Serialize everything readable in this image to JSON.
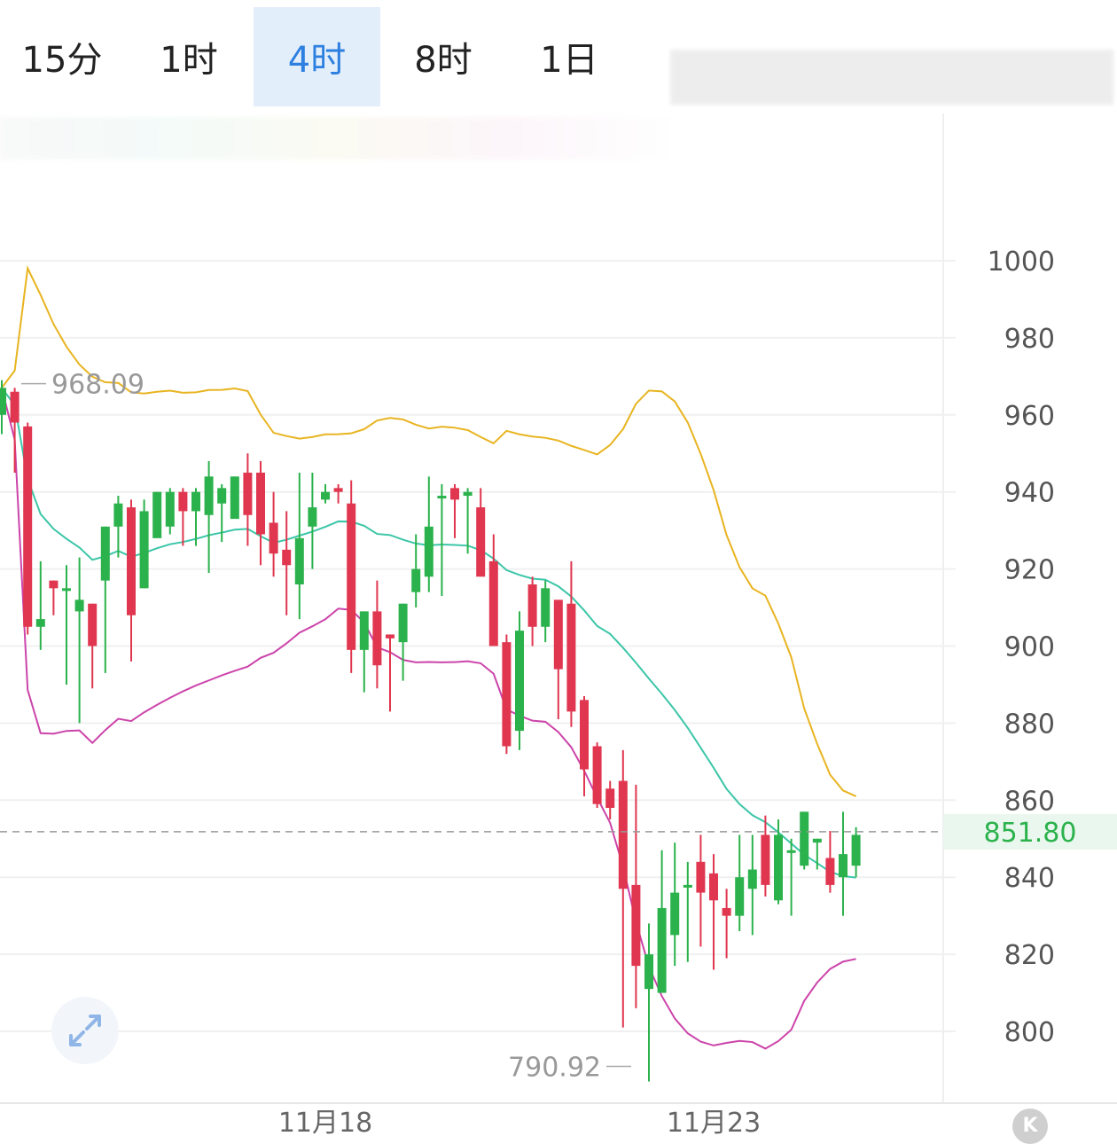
{
  "tabs": [
    {
      "label": "15分",
      "active": false
    },
    {
      "label": "1时",
      "active": false
    },
    {
      "label": "4时",
      "active": true
    },
    {
      "label": "8时",
      "active": false
    },
    {
      "label": "1日",
      "active": false
    }
  ],
  "colors": {
    "up": "#2bb24c",
    "down": "#e0364f",
    "upper_band": "#e8b420",
    "middle_band": "#3cc6a8",
    "lower_band": "#cc44aa",
    "active_tab": "#2d7fe0",
    "current_price": "#2bb24c"
  },
  "icons": {
    "expand": "expand-arrows-icon",
    "k_button": "k-icon"
  },
  "k_button_label": "K",
  "chart_data": {
    "type": "candlestick",
    "ylim": [
      780,
      1020
    ],
    "y_ticks": [
      800,
      820,
      840,
      860,
      880,
      900,
      920,
      940,
      960,
      980,
      1000
    ],
    "x_tick_labels": [
      {
        "label": "11月18",
        "index": 25
      },
      {
        "label": "11月23",
        "index": 55
      }
    ],
    "current_price": "851.80",
    "annotations": {
      "high": "968.09",
      "low": "790.92"
    },
    "candles": [
      [
        960,
        967,
        969,
        955
      ],
      [
        966,
        958,
        967,
        945
      ],
      [
        957,
        905,
        958,
        903
      ],
      [
        905,
        907,
        922,
        899
      ],
      [
        917,
        915,
        917,
        908
      ],
      [
        915,
        915,
        921,
        890
      ],
      [
        909,
        912,
        923,
        880
      ],
      [
        911,
        900,
        911,
        889
      ],
      [
        917,
        931,
        931,
        893
      ],
      [
        931,
        937,
        939,
        923
      ],
      [
        936,
        908,
        938,
        896
      ],
      [
        915,
        935,
        938,
        915
      ],
      [
        928,
        940,
        940,
        934
      ],
      [
        931,
        940,
        941,
        929
      ],
      [
        940,
        935,
        941,
        926
      ],
      [
        935,
        940,
        941,
        926
      ],
      [
        934,
        944,
        948,
        919
      ],
      [
        937,
        941,
        942,
        927
      ],
      [
        933,
        944,
        944,
        935
      ],
      [
        945,
        934,
        950,
        926
      ],
      [
        945,
        929,
        948,
        921
      ],
      [
        932,
        924,
        940,
        918
      ],
      [
        925,
        921,
        935,
        908
      ],
      [
        916,
        928,
        945,
        907
      ],
      [
        931,
        936,
        945,
        920
      ],
      [
        938,
        940,
        942,
        937
      ],
      [
        941,
        940,
        942,
        937
      ],
      [
        937,
        899,
        943,
        893
      ],
      [
        899,
        909,
        909,
        888
      ],
      [
        909,
        895,
        917,
        889
      ],
      [
        903,
        902,
        903,
        883
      ],
      [
        901,
        911,
        911,
        891
      ],
      [
        914,
        920,
        929,
        910
      ],
      [
        918,
        931,
        944,
        914
      ],
      [
        939,
        939,
        942,
        913
      ],
      [
        941,
        938,
        942,
        928
      ],
      [
        939,
        940,
        941,
        924
      ],
      [
        936,
        918,
        941,
        920
      ],
      [
        922,
        900,
        929,
        905
      ],
      [
        901,
        874,
        903,
        872
      ],
      [
        878,
        904,
        909,
        873
      ],
      [
        916,
        905,
        918,
        900
      ],
      [
        905,
        915,
        917,
        901
      ],
      [
        912,
        894,
        912,
        881
      ],
      [
        911,
        883,
        922,
        879
      ],
      [
        886,
        868,
        887,
        861
      ],
      [
        874,
        859,
        875,
        858
      ],
      [
        863,
        858,
        865,
        855
      ],
      [
        865,
        837,
        873,
        801
      ],
      [
        838,
        817,
        864,
        806
      ],
      [
        811,
        820,
        828,
        787
      ],
      [
        810,
        832,
        847,
        813
      ],
      [
        825,
        836,
        849,
        817
      ],
      [
        838,
        838,
        844,
        818
      ],
      [
        844,
        836,
        851,
        822
      ],
      [
        841,
        834,
        846,
        816
      ],
      [
        832,
        830,
        837,
        819
      ],
      [
        830,
        840,
        851,
        826
      ],
      [
        837,
        842,
        851,
        825
      ],
      [
        851,
        838,
        856,
        835
      ],
      [
        834,
        851,
        855,
        833
      ],
      [
        847,
        847,
        850,
        830
      ],
      [
        843,
        857,
        857,
        842
      ],
      [
        849,
        850,
        850,
        842
      ],
      [
        845,
        838,
        852,
        836
      ],
      [
        840,
        846,
        857,
        830
      ],
      [
        843,
        851,
        853,
        840
      ]
    ]
  }
}
